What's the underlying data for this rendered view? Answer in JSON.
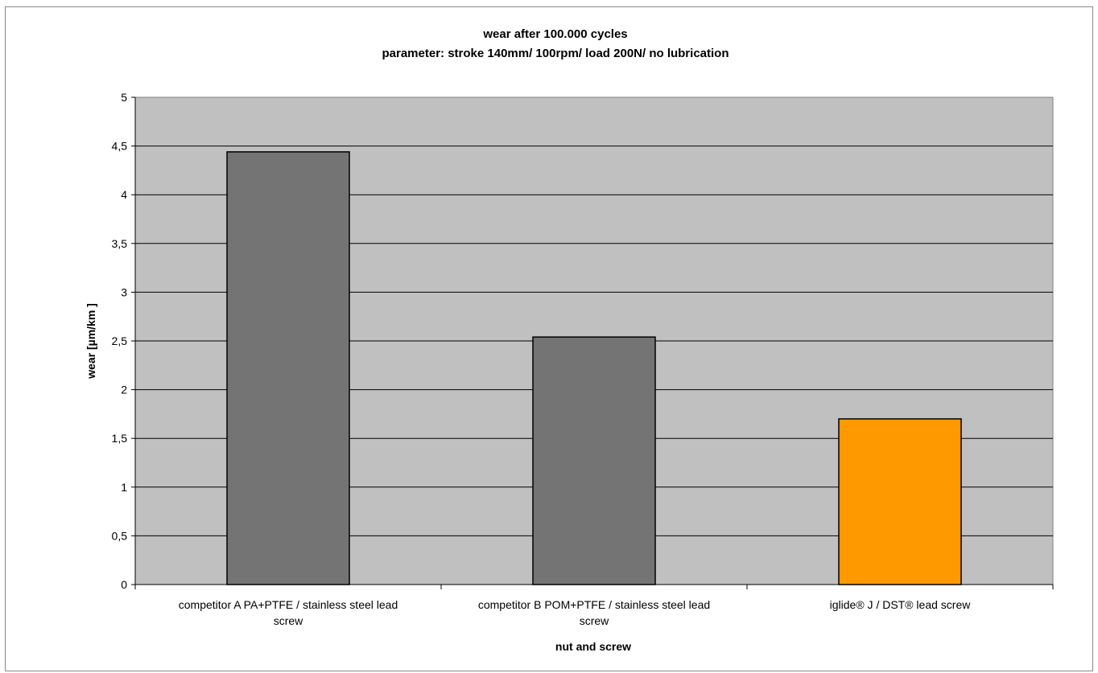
{
  "chart_data": {
    "type": "bar",
    "title": "wear after 100.000 cycles",
    "subtitle": "parameter:  stroke 140mm/ 100rpm/ load 200N/ no lubrication",
    "xlabel": "nut and screw",
    "ylabel": "wear [µm/km ]",
    "ylim": [
      0,
      5
    ],
    "yticks": [
      "0",
      "0,5",
      "1",
      "1,5",
      "2",
      "2,5",
      "3",
      "3,5",
      "4",
      "4,5",
      "5"
    ],
    "categories": [
      [
        "competitor A PA+PTFE / stainless steel lead",
        "screw"
      ],
      [
        "competitor B POM+PTFE / stainless steel lead",
        "screw"
      ],
      [
        "iglide® J / DST® lead screw"
      ]
    ],
    "values": [
      4.44,
      2.54,
      1.7
    ],
    "colors": [
      "#747474",
      "#747474",
      "#ff9900"
    ],
    "grid": true,
    "plot_background": "#c0c0c0",
    "legend": "none"
  }
}
